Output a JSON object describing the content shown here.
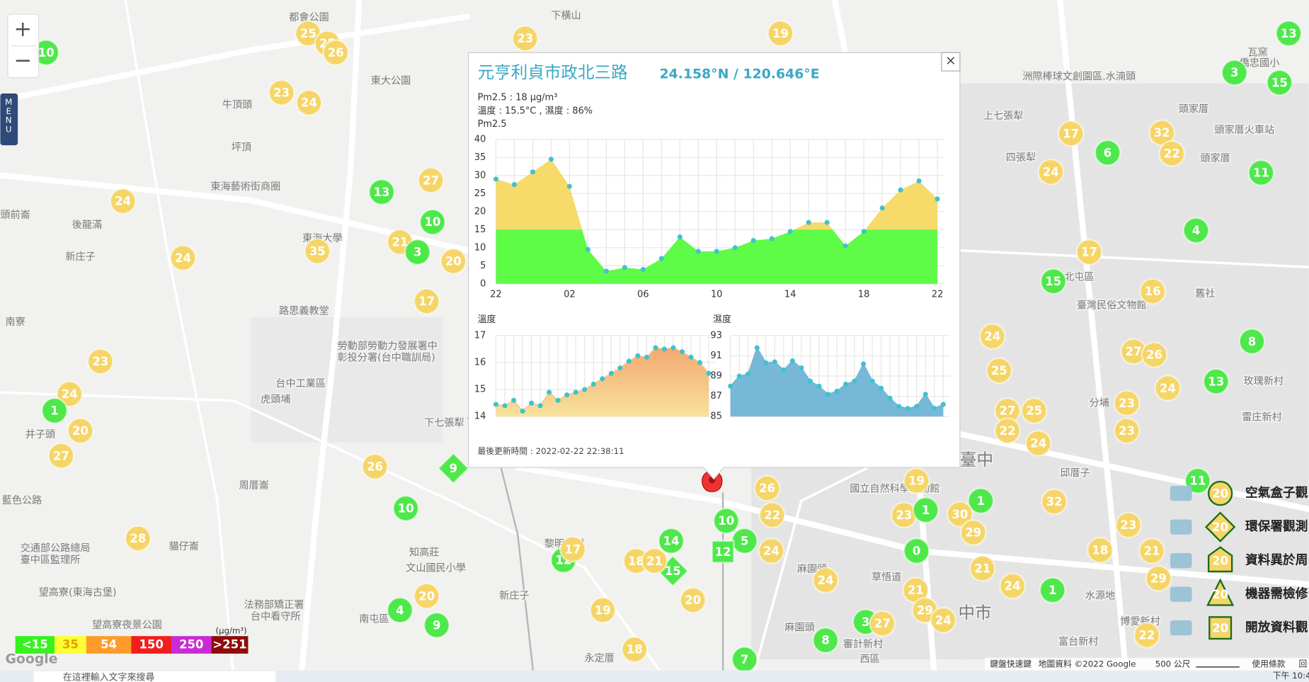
{
  "map": {
    "zoom_in": "+",
    "zoom_out": "−",
    "menu": "MENU",
    "place_labels": [
      "都會公園",
      "下橫山",
      "東大公園",
      "牛頂頭",
      "坪頂",
      "東海藝術街商圈",
      "頭前崙",
      "後龍滿",
      "新庄子",
      "東海大學",
      "路思義教堂",
      "南寮",
      "勞動部勞動力發展署中",
      "彰投分署(台中職訓局)",
      "台中工業區",
      "虎頭埔",
      "井子頭",
      "下七張犁",
      "周厝崙",
      "藍色公路",
      "交通部公路總局",
      "臺中區監理所",
      "貓仔崙",
      "望高寮(東海古堡)",
      "望高寮夜景公園",
      "法務部矯正署",
      "台中看守所",
      "南屯區",
      "知高莊",
      "文山國民小學",
      "新庄子",
      "永定厝",
      "黎明新村",
      "麻園頭",
      "麻園頭",
      "國立自然科學博物館",
      "草悟道",
      "審計新村",
      "西區",
      "臺中",
      "中市",
      "北屯區",
      "臺灣民俗文物館",
      "舊社",
      "頭家厝",
      "頭家厝",
      "四張犁",
      "上七張犁",
      "洲際棒球文創園區.水湳頭",
      "瓦窯",
      "僑忠國小",
      "分埔",
      "雷庄新村",
      "玫瑰新村",
      "邱厝子",
      "水源地",
      "富台新村",
      "博愛新村",
      "頭家厝火車站"
    ],
    "markers": [
      10,
      25,
      25,
      26,
      23,
      19,
      13,
      23,
      24,
      3,
      15,
      24,
      27,
      13,
      10,
      35,
      21,
      3,
      20,
      24,
      17,
      23,
      24,
      1,
      20,
      27,
      26,
      9,
      10,
      28,
      20,
      4,
      9,
      17,
      32,
      6,
      22,
      24,
      11,
      4,
      17,
      15,
      16,
      24,
      8,
      27,
      26,
      25,
      13,
      24,
      23,
      27,
      25,
      22,
      23,
      24,
      19,
      11,
      26,
      22,
      10,
      5,
      24,
      12,
      14,
      15,
      12,
      18,
      21,
      20,
      19,
      18,
      7,
      1,
      32,
      23,
      1,
      30,
      29,
      23,
      0,
      18,
      21,
      21,
      24,
      29,
      24,
      1,
      21,
      29,
      24,
      3,
      27,
      8,
      22,
      17
    ],
    "marker_colors": [
      "#4ee84b",
      "#f6d568",
      "#f5a541",
      "#e84b4b",
      "#c34fc7",
      "#8b1a1a"
    ],
    "attribution": [
      "鍵盤快速鍵",
      "地圖資料 ©2022 Google",
      "500 公尺",
      "使用條款",
      "回"
    ],
    "logo": "Google"
  },
  "popup": {
    "close": "×",
    "title": "元亨利貞市政北三路",
    "coords": "24.158°N / 120.646°E",
    "pm25_text": "Pm2.5 : 18 μg/m³",
    "temp_humidity_text": "溫度 : 15.5°C , 濕度 : 86%",
    "last_updated": "最後更新時間 : 2022-02-22 22:38:11"
  },
  "chart_data": [
    {
      "type": "area",
      "title": "Pm2.5",
      "categories": [
        "22",
        null,
        null,
        null,
        "02",
        null,
        null,
        null,
        "06",
        null,
        null,
        null,
        "10",
        null,
        null,
        null,
        "14",
        null,
        null,
        null,
        "18",
        null,
        null,
        null,
        "22"
      ],
      "values": [
        29,
        27.5,
        31,
        34.5,
        27,
        9.5,
        3.5,
        4.5,
        4,
        7,
        13,
        9,
        9,
        10,
        12,
        12.5,
        14.5,
        17,
        17,
        10.5,
        14.5,
        21,
        26,
        28.5,
        23.5
      ],
      "ylim": [
        0,
        40
      ],
      "yticks": [
        0,
        5,
        10,
        15,
        20,
        25,
        30,
        35,
        40
      ],
      "color": "#f6da6a",
      "low_color": "#5efb47",
      "point_color": "#3ec3cc",
      "grid": true
    },
    {
      "type": "area",
      "title": "溫度",
      "values": [
        14.45,
        14.4,
        14.6,
        14.2,
        14.5,
        14.4,
        14.9,
        14.6,
        14.8,
        14.9,
        15.0,
        15.2,
        15.4,
        15.6,
        15.8,
        16.05,
        16.25,
        16.2,
        16.55,
        16.5,
        16.55,
        16.4,
        16.2,
        16.0,
        15.6
      ],
      "ylim": [
        14,
        17
      ],
      "yticks": [
        14,
        15,
        16,
        17
      ],
      "color": "#f5c98c",
      "point_color": "#3ec3cc",
      "grid": true
    },
    {
      "type": "area",
      "title": "濕度",
      "values": [
        88,
        89,
        89.2,
        91.8,
        90.3,
        90.4,
        89.6,
        90.5,
        89.8,
        88.5,
        88,
        87.2,
        87.5,
        88.2,
        88.5,
        90.2,
        88.5,
        87.8,
        86.8,
        86,
        85.8,
        86,
        87.2,
        85.8,
        86.2
      ],
      "ylim": [
        85,
        93
      ],
      "yticks": [
        85,
        87,
        89,
        91,
        93
      ],
      "color": "#77b8d8",
      "point_color": "#3ec3cc",
      "grid": true
    }
  ],
  "legend": {
    "unit": "(μg/m³)",
    "levels": [
      {
        "value": 15,
        "label": "<15",
        "color": "#37f21f"
      },
      {
        "value": 35,
        "label": "35",
        "color": "#ffff33"
      },
      {
        "value": 54,
        "label": "54",
        "color": "#ff9b2a"
      },
      {
        "value": 150,
        "label": "150",
        "color": "#f01e1e"
      },
      {
        "value": 250,
        "label": "250",
        "color": "#c82bd6"
      },
      {
        "value": 251,
        "label": ">251",
        "color": "#900a0a"
      }
    ]
  },
  "station_legend": {
    "marker_value": 20,
    "items": [
      "空氣盒子觀",
      "環保署觀測",
      "資料異於周",
      "機器需檢修",
      "開放資料觀"
    ]
  },
  "taskbar": {
    "search": "在這裡輸入文字來搜尋",
    "time": "下午 10:4"
  }
}
